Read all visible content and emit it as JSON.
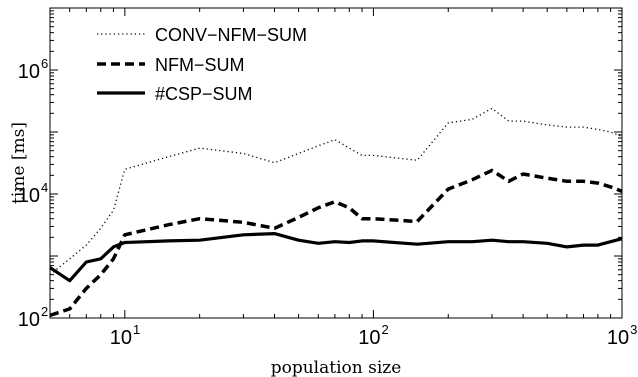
{
  "chart_data": {
    "type": "line",
    "xscale": "log",
    "yscale": "log",
    "xlim": [
      5,
      1000
    ],
    "ylim": [
      100,
      10000000
    ],
    "xlabel": "population size",
    "ylabel": "time [ms]",
    "legend_position": "top-left",
    "x_ticks": [
      {
        "base": "10",
        "exp": "1",
        "value": 10
      },
      {
        "base": "10",
        "exp": "2",
        "value": 100
      },
      {
        "base": "10",
        "exp": "3",
        "value": 1000
      }
    ],
    "y_ticks": [
      {
        "base": "10",
        "exp": "2",
        "value": 100
      },
      {
        "base": "10",
        "exp": "4",
        "value": 10000
      },
      {
        "base": "10",
        "exp": "6",
        "value": 1000000
      }
    ],
    "series": [
      {
        "name": "CONV−NFM−SUM",
        "style": "dotted",
        "color": "#000000",
        "x": [
          5,
          6,
          7,
          8,
          9,
          10,
          15,
          20,
          30,
          40,
          50,
          60,
          70,
          80,
          90,
          100,
          150,
          200,
          250,
          300,
          350,
          400,
          500,
          600,
          700,
          800,
          900,
          1000
        ],
        "y": [
          500,
          900,
          1500,
          2800,
          5500,
          25000,
          40000,
          55000,
          45000,
          32000,
          45000,
          60000,
          75000,
          55000,
          42000,
          42000,
          35000,
          140000,
          160000,
          240000,
          150000,
          150000,
          130000,
          120000,
          120000,
          110000,
          100000,
          85000
        ]
      },
      {
        "name": "NFM−SUM",
        "style": "dashed",
        "color": "#000000",
        "x": [
          5,
          6,
          7,
          8,
          9,
          10,
          15,
          20,
          30,
          40,
          50,
          60,
          70,
          80,
          90,
          100,
          150,
          200,
          250,
          300,
          350,
          400,
          500,
          600,
          700,
          800,
          900,
          1000
        ],
        "y": [
          110,
          140,
          300,
          500,
          900,
          2200,
          3200,
          4000,
          3500,
          2800,
          4200,
          6000,
          7500,
          6000,
          4000,
          4000,
          3600,
          12000,
          17000,
          24000,
          16000,
          21000,
          18000,
          16000,
          16000,
          15000,
          13000,
          11000
        ]
      },
      {
        "name": "#CSP−SUM",
        "style": "solid",
        "color": "#000000",
        "x": [
          5,
          6,
          7,
          8,
          9,
          10,
          15,
          20,
          30,
          40,
          50,
          60,
          70,
          80,
          90,
          100,
          150,
          200,
          250,
          300,
          350,
          400,
          500,
          600,
          700,
          800,
          900,
          1000
        ],
        "y": [
          650,
          400,
          800,
          900,
          1400,
          1650,
          1750,
          1800,
          2200,
          2300,
          1800,
          1600,
          1700,
          1650,
          1750,
          1750,
          1550,
          1700,
          1700,
          1800,
          1700,
          1700,
          1600,
          1400,
          1500,
          1500,
          1700,
          1900
        ]
      }
    ]
  }
}
